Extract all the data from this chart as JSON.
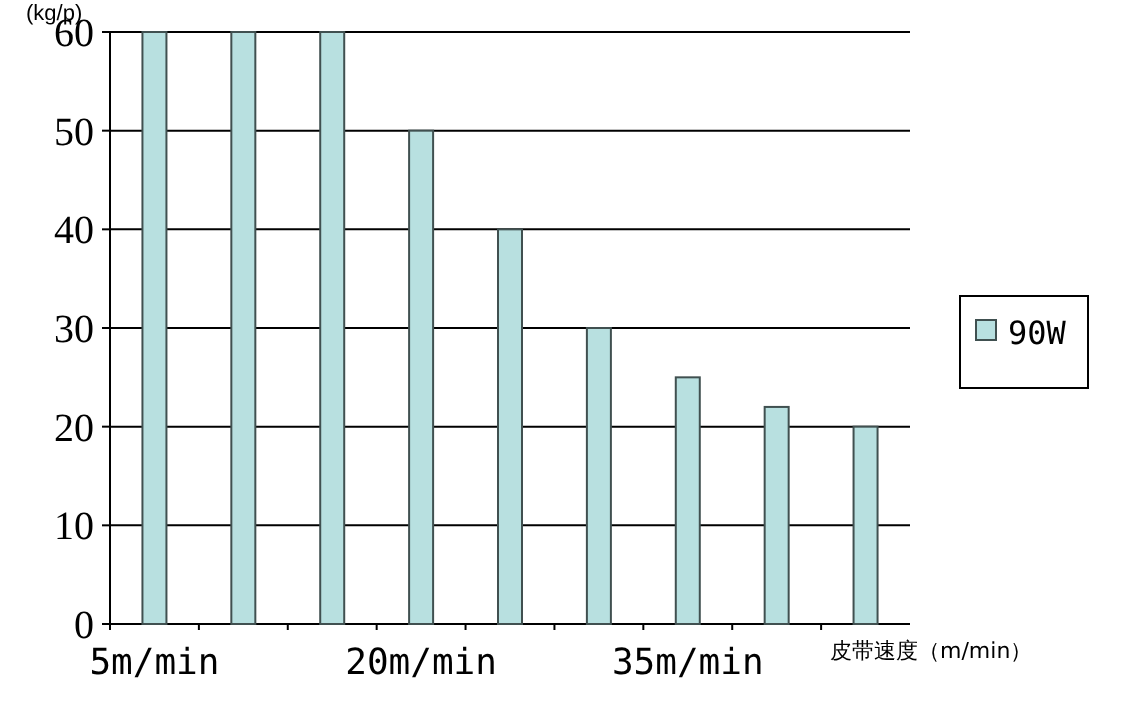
{
  "chart_data": {
    "type": "bar",
    "ylabel": "(kg/p)",
    "xlabel": "皮带速度（m/min）",
    "categories": [
      "5m/min",
      null,
      null,
      "20m/min",
      null,
      null,
      "35m/min",
      null,
      null
    ],
    "series": [
      {
        "name": "90W",
        "color": "#b8e0e0",
        "values": [
          60,
          60,
          60,
          50,
          40,
          30,
          25,
          22,
          20
        ]
      }
    ],
    "ylim": [
      0,
      60
    ],
    "yticks": [
      0,
      10,
      20,
      30,
      40,
      50,
      60
    ],
    "grid": "y",
    "legend": "right"
  }
}
